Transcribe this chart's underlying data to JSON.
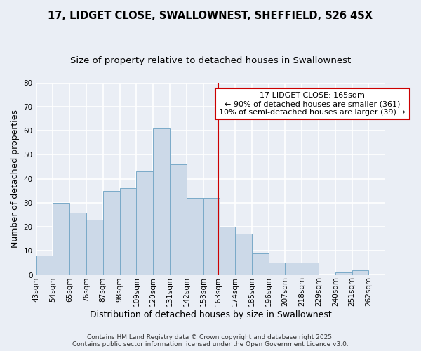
{
  "title1": "17, LIDGET CLOSE, SWALLOWNEST, SHEFFIELD, S26 4SX",
  "title2": "Size of property relative to detached houses in Swallownest",
  "xlabel": "Distribution of detached houses by size in Swallownest",
  "ylabel": "Number of detached properties",
  "bar_color": "#ccd9e8",
  "bar_edge_color": "#7aaac8",
  "background_color": "#eaeef5",
  "grid_color": "#ffffff",
  "annotation_line_color": "#cc0000",
  "annotation_box_color": "#cc0000",
  "annotation_line1": "17 LIDGET CLOSE: 165sqm",
  "annotation_line2": "← 90% of detached houses are smaller (361)",
  "annotation_line3": "10% of semi-detached houses are larger (39) →",
  "property_line_x": 163,
  "bins": [
    43,
    54,
    65,
    76,
    87,
    98,
    109,
    120,
    131,
    142,
    153,
    163,
    174,
    185,
    196,
    207,
    218,
    229,
    240,
    251,
    262
  ],
  "counts": [
    8,
    30,
    26,
    23,
    35,
    36,
    43,
    61,
    46,
    32,
    32,
    20,
    17,
    9,
    5,
    5,
    5,
    0,
    1,
    2,
    0
  ],
  "tick_labels": [
    "43sqm",
    "54sqm",
    "65sqm",
    "76sqm",
    "87sqm",
    "98sqm",
    "109sqm",
    "120sqm",
    "131sqm",
    "142sqm",
    "153sqm",
    "163sqm",
    "174sqm",
    "185sqm",
    "196sqm",
    "207sqm",
    "218sqm",
    "229sqm",
    "240sqm",
    "251sqm",
    "262sqm"
  ],
  "ylim": [
    0,
    80
  ],
  "yticks": [
    0,
    10,
    20,
    30,
    40,
    50,
    60,
    70,
    80
  ],
  "footer_text": "Contains HM Land Registry data © Crown copyright and database right 2025.\nContains public sector information licensed under the Open Government Licence v3.0.",
  "title_fontsize": 10.5,
  "subtitle_fontsize": 9.5,
  "axis_label_fontsize": 9,
  "tick_fontsize": 7.5,
  "annotation_fontsize": 8,
  "footer_fontsize": 6.5
}
